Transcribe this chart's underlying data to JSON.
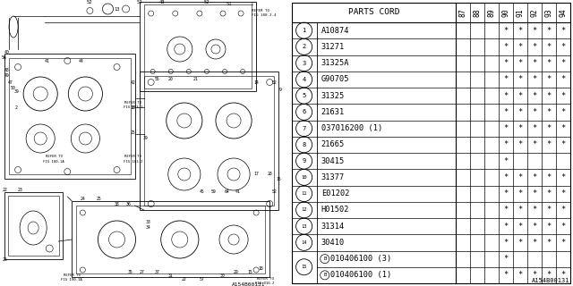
{
  "diagram_ref": "A154B00131",
  "table_header": "PARTS CORD",
  "year_cols": [
    "87",
    "88",
    "89",
    "90",
    "91",
    "92",
    "93",
    "94"
  ],
  "parts": [
    {
      "num": 1,
      "code": "A10874",
      "suffix": "",
      "years": [
        0,
        0,
        0,
        1,
        1,
        1,
        1,
        1
      ],
      "bullet": false,
      "shared_row": false
    },
    {
      "num": 2,
      "code": "31271",
      "suffix": "",
      "years": [
        0,
        0,
        0,
        1,
        1,
        1,
        1,
        1
      ],
      "bullet": false,
      "shared_row": false
    },
    {
      "num": 3,
      "code": "31325A",
      "suffix": "",
      "years": [
        0,
        0,
        0,
        1,
        1,
        1,
        1,
        1
      ],
      "bullet": false,
      "shared_row": false
    },
    {
      "num": 4,
      "code": "G90705",
      "suffix": "",
      "years": [
        0,
        0,
        0,
        1,
        1,
        1,
        1,
        1
      ],
      "bullet": false,
      "shared_row": false
    },
    {
      "num": 5,
      "code": "31325",
      "suffix": "",
      "years": [
        0,
        0,
        0,
        1,
        1,
        1,
        1,
        1
      ],
      "bullet": false,
      "shared_row": false
    },
    {
      "num": 6,
      "code": "21631",
      "suffix": "",
      "years": [
        0,
        0,
        0,
        1,
        1,
        1,
        1,
        1
      ],
      "bullet": false,
      "shared_row": false
    },
    {
      "num": 7,
      "code": "037016200 (1)",
      "suffix": "",
      "years": [
        0,
        0,
        0,
        1,
        1,
        1,
        1,
        1
      ],
      "bullet": false,
      "shared_row": false
    },
    {
      "num": 8,
      "code": "21665",
      "suffix": "",
      "years": [
        0,
        0,
        0,
        1,
        1,
        1,
        1,
        1
      ],
      "bullet": false,
      "shared_row": false
    },
    {
      "num": 9,
      "code": "30415",
      "suffix": "",
      "years": [
        0,
        0,
        0,
        1,
        0,
        0,
        0,
        0
      ],
      "bullet": false,
      "shared_row": false
    },
    {
      "num": 10,
      "code": "31377",
      "suffix": "",
      "years": [
        0,
        0,
        0,
        1,
        1,
        1,
        1,
        1
      ],
      "bullet": false,
      "shared_row": false
    },
    {
      "num": 11,
      "code": "E01202",
      "suffix": "",
      "years": [
        0,
        0,
        0,
        1,
        1,
        1,
        1,
        1
      ],
      "bullet": false,
      "shared_row": false
    },
    {
      "num": 12,
      "code": "H01502",
      "suffix": "",
      "years": [
        0,
        0,
        0,
        1,
        1,
        1,
        1,
        1
      ],
      "bullet": false,
      "shared_row": false
    },
    {
      "num": 13,
      "code": "31314",
      "suffix": "",
      "years": [
        0,
        0,
        0,
        1,
        1,
        1,
        1,
        1
      ],
      "bullet": false,
      "shared_row": false
    },
    {
      "num": 14,
      "code": "30410",
      "suffix": "",
      "years": [
        0,
        0,
        0,
        1,
        1,
        1,
        1,
        1
      ],
      "bullet": false,
      "shared_row": false
    },
    {
      "num": 15,
      "code": "010406100 (3)",
      "suffix": "",
      "years": [
        0,
        0,
        0,
        1,
        0,
        0,
        0,
        0
      ],
      "bullet": true,
      "shared_row": true,
      "is_first_sub": true
    },
    {
      "num": 15,
      "code": "010406100 (1)",
      "suffix": "",
      "years": [
        0,
        0,
        0,
        1,
        1,
        1,
        1,
        1
      ],
      "bullet": true,
      "shared_row": true,
      "is_first_sub": false
    }
  ],
  "bg_color": "#ffffff",
  "line_color": "#000000",
  "text_color": "#000000",
  "table_font_size": 6.2,
  "header_font_size": 6.8,
  "num_font_size": 5.0,
  "num_font_size_2digit": 4.0
}
